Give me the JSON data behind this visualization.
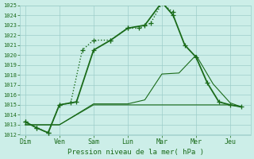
{
  "xlabel": "Pression niveau de la mer( hPa )",
  "days": [
    "Dim",
    "Ven",
    "Sam",
    "Lun",
    "Mar",
    "Mer",
    "Jeu"
  ],
  "day_x": [
    0,
    1,
    2,
    3,
    4,
    5,
    6
  ],
  "line_dotted": {
    "x": [
      0,
      0.33,
      0.67,
      1.0,
      1.33,
      1.67,
      2.0,
      2.5,
      3.0,
      3.33,
      3.67,
      4.0,
      4.33
    ],
    "y": [
      1013.3,
      1012.7,
      1012.2,
      1015.0,
      1015.2,
      1020.5,
      1021.5,
      1021.5,
      1022.7,
      1022.7,
      1023.2,
      1025.2,
      1024.3
    ],
    "color": "#1a6b1a",
    "linestyle": ":",
    "linewidth": 1.0,
    "marker": "+",
    "markersize": 4
  },
  "line_solid_marker": {
    "x": [
      0,
      0.33,
      0.67,
      1.0,
      1.5,
      2.0,
      2.5,
      3.0,
      3.5,
      4.0,
      4.33,
      4.67,
      5.0,
      5.33,
      5.67,
      6.0,
      6.33
    ],
    "y": [
      1013.3,
      1012.7,
      1012.2,
      1015.0,
      1015.3,
      1020.5,
      1021.5,
      1022.7,
      1023.0,
      1025.3,
      1024.0,
      1021.0,
      1019.8,
      1017.2,
      1015.3,
      1015.0,
      1014.8
    ],
    "color": "#1a6b1a",
    "linestyle": "-",
    "linewidth": 1.3,
    "marker": "+",
    "markersize": 4
  },
  "line_thin_upper": {
    "x": [
      0,
      1.0,
      2.0,
      3.0,
      3.5,
      4.0,
      4.5,
      5.0,
      5.5,
      6.0,
      6.33
    ],
    "y": [
      1013.0,
      1013.0,
      1015.1,
      1015.1,
      1015.5,
      1018.1,
      1018.2,
      1020.0,
      1017.1,
      1015.2,
      1014.8
    ],
    "color": "#1a6b1a",
    "linestyle": "-",
    "linewidth": 0.8
  },
  "line_thin_lower": {
    "x": [
      0,
      1.0,
      2.0,
      3.0,
      4.0,
      5.0,
      5.5,
      6.0,
      6.33
    ],
    "y": [
      1013.0,
      1013.0,
      1015.0,
      1015.0,
      1015.0,
      1015.0,
      1015.0,
      1015.0,
      1014.8
    ],
    "color": "#1a6b1a",
    "linestyle": "-",
    "linewidth": 0.8
  },
  "ylim": [
    1012,
    1025
  ],
  "xlim": [
    -0.15,
    6.6
  ],
  "yticks": [
    1012,
    1013,
    1014,
    1015,
    1016,
    1017,
    1018,
    1019,
    1020,
    1021,
    1022,
    1023,
    1024,
    1025
  ],
  "bg_color": "#cceee8",
  "grid_color": "#9ececa",
  "line_color": "#1a6b1a",
  "tick_color": "#1a6b1a",
  "label_color": "#1a6b1a"
}
